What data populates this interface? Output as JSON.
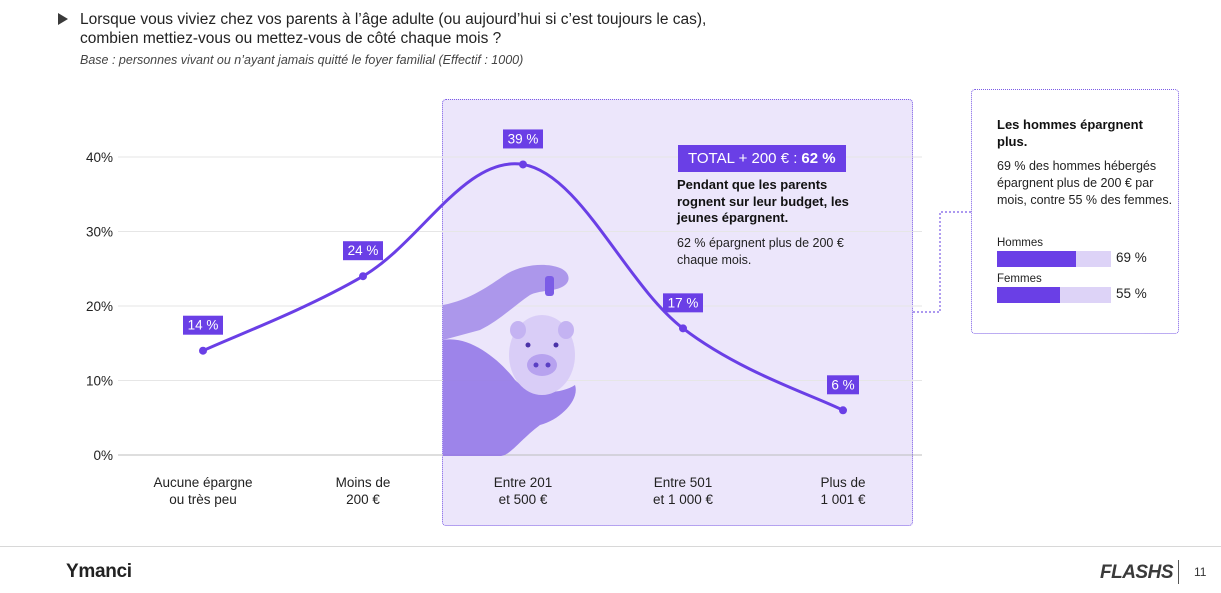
{
  "header": {
    "title": "Lorsque vous viviez chez vos parents à l’âge adulte (ou aujourd’hui si c’est toujours le cas), combien mettiez-vous ou mettez-vous de côté chaque mois ?",
    "subtitle": "Base : personnes vivant ou n’ayant jamais quitté le foyer familial (Effectif : 1000)"
  },
  "chart_data": {
    "type": "line",
    "categories": [
      "Aucune épargne\nou très peu",
      "Moins de\n200 €",
      "Entre 201\net 500 €",
      "Entre 501\net 1 000 €",
      "Plus de\n1 001 €"
    ],
    "values": [
      14,
      24,
      39,
      17,
      6
    ],
    "value_labels": [
      "14 %",
      "24 %",
      "39 %",
      "17 %",
      "6 %"
    ],
    "yticks": [
      0,
      10,
      20,
      30,
      40
    ],
    "ytick_labels": [
      "0%",
      "10%",
      "20%",
      "30%",
      "40%"
    ],
    "ylim": [
      0,
      40
    ],
    "smooth": true,
    "grid": true,
    "highlighted_categories": [
      "Entre 201\net 500 €",
      "Entre 501\net 1 000 €",
      "Plus de\n1 001 €"
    ],
    "colors": {
      "line": "#6a3fe6",
      "highlight_bg": "#ece6fb",
      "grid": "#e6e6e6"
    }
  },
  "callout": {
    "badge_prefix": "TOTAL + 200 € :",
    "badge_value": "62 %",
    "headline": "Pendant que les parents rognent sur leur budget, les jeunes épargnent.",
    "body": "62 % épargnent plus de 200 € chaque mois."
  },
  "side_panel": {
    "headline": "Les hommes épargnent plus.",
    "body": "69 % des hommes hébergés épargnent plus de 200 € par mois, contre 55 % des femmes.",
    "bars": [
      {
        "label": "Hommes",
        "value": 69,
        "value_label": "69 %"
      },
      {
        "label": "Femmes",
        "value": 55,
        "value_label": "55 %"
      }
    ]
  },
  "footer": {
    "logo_left": "Ymanci",
    "logo_right": "FLASHS",
    "page_number": "11"
  },
  "image_description_icon": "piggy-bank-photo"
}
